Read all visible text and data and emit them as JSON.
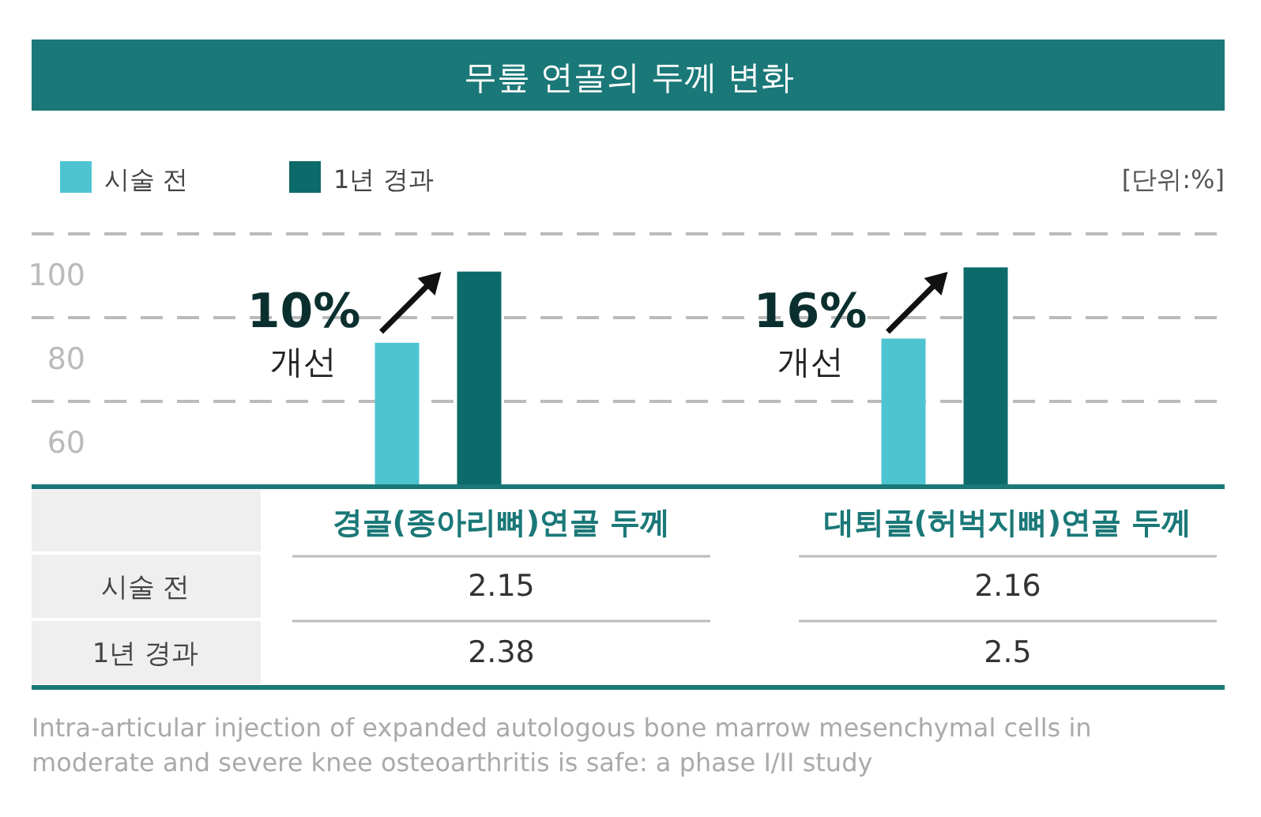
{
  "chart_data": {
    "type": "bar",
    "title": "무릎 연골의 두께 변화",
    "categories": [
      "경골(종아리뼈)연골 두께",
      "대퇴골(허벅지뼈)연골 두께"
    ],
    "series": [
      {
        "name": "시술 전",
        "color": "#4fc4d1",
        "values": [
          84,
          85
        ]
      },
      {
        "name": "1년 경과",
        "color": "#0d6a6a",
        "values": [
          101,
          102
        ]
      }
    ],
    "ylim": [
      50,
      110
    ],
    "yticks": [
      60,
      {
        "value": 70,
        "label": null
      },
      80,
      {
        "value": 90,
        "label": null
      },
      100,
      {
        "value": 110,
        "label": null
      }
    ],
    "grid": "y",
    "legend": "top left",
    "annotations": [
      "10%",
      "개선",
      "16%",
      "개선",
      "[단위:%]",
      "2.15",
      "2.16",
      "2.38",
      "2.5",
      "Intra-articular injection of expanded autologous bone marrow mesenchymal cells in moderate and severe knee osteoarthritis is safe: a phase I/II study"
    ]
  }
}
